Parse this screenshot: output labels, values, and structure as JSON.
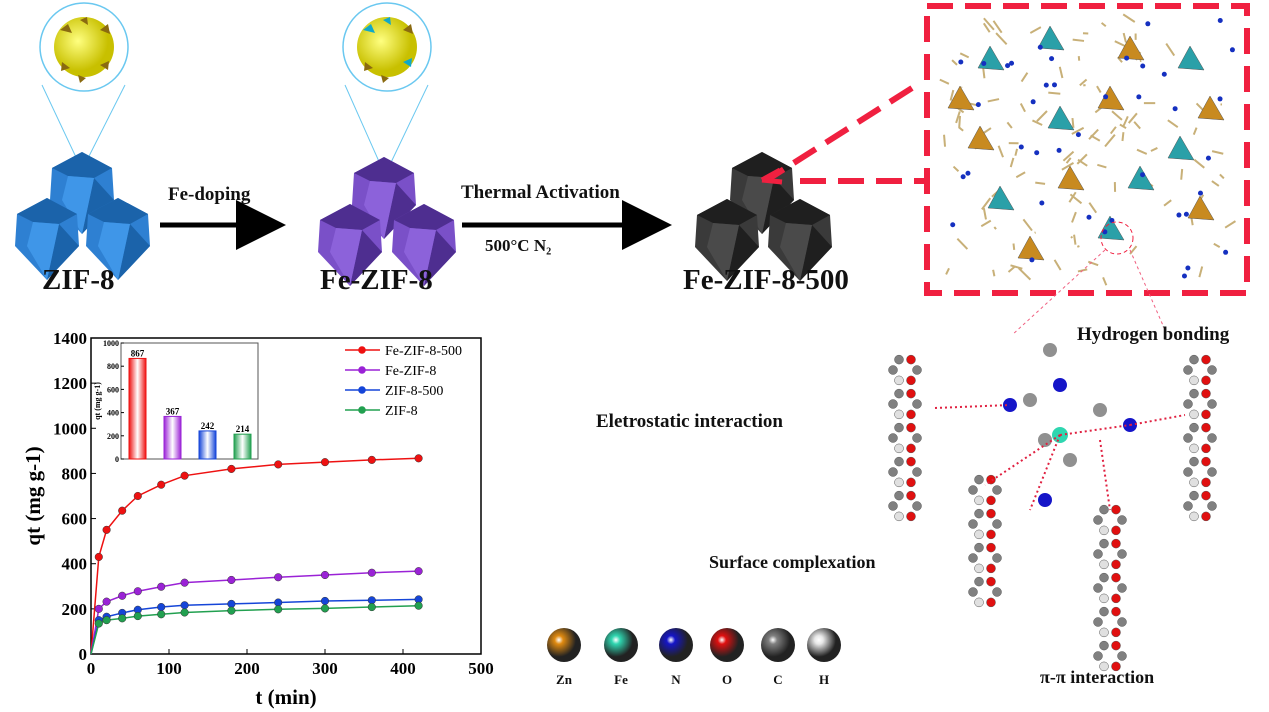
{
  "process": {
    "stage1": "ZIF-8",
    "stage2": "Fe-ZIF-8",
    "stage3": "Fe-ZIF-8-500",
    "step1": "Fe-doping",
    "step2": "Thermal Activation",
    "step2_condition": "500°C  N₂"
  },
  "interactions": {
    "hydrogen": "Hydrogen bonding",
    "electrostatic": "Eletrostatic interaction",
    "surface": "Surface complexation",
    "pi": "π-π interaction"
  },
  "atoms": [
    {
      "label": "Zn",
      "color": "#e08a10"
    },
    {
      "label": "Fe",
      "color": "#2fd6b0"
    },
    {
      "label": "N",
      "color": "#1515c8"
    },
    {
      "label": "O",
      "color": "#e01010"
    },
    {
      "label": "C",
      "color": "#808080"
    },
    {
      "label": "H",
      "color": "#e8e8e8"
    }
  ],
  "chart_data": [
    {
      "type": "line",
      "xlabel": "t (min)",
      "ylabel": "qt (mg g-1)",
      "xlim": [
        0,
        500
      ],
      "ylim": [
        0,
        1400
      ],
      "xticks": [
        "0",
        "100",
        "200",
        "300",
        "400",
        "500"
      ],
      "yticks": [
        "0",
        "200",
        "400",
        "600",
        "800",
        "1000",
        "1200",
        "1400"
      ],
      "legend": "top-right",
      "x": [
        0,
        10,
        20,
        40,
        60,
        90,
        120,
        180,
        240,
        300,
        360,
        420
      ],
      "series": [
        {
          "name": "Fe-ZIF-8-500",
          "color": "#ee1111",
          "values": [
            0,
            430,
            550,
            635,
            700,
            750,
            790,
            820,
            840,
            850,
            860,
            867
          ]
        },
        {
          "name": "Fe-ZIF-8",
          "color": "#9a22d6",
          "values": [
            0,
            200,
            232,
            258,
            278,
            298,
            316,
            328,
            340,
            350,
            360,
            367
          ]
        },
        {
          "name": "ZIF-8-500",
          "color": "#1545d8",
          "values": [
            0,
            150,
            165,
            182,
            196,
            208,
            216,
            222,
            228,
            235,
            238,
            242
          ]
        },
        {
          "name": "ZIF-8",
          "color": "#22a050",
          "values": [
            0,
            135,
            150,
            158,
            168,
            176,
            184,
            192,
            198,
            202,
            208,
            214
          ]
        }
      ]
    },
    {
      "type": "bar",
      "ylabel": "qt (mg g-1)",
      "ylim": [
        0,
        1000
      ],
      "yticks": [
        "0",
        "200",
        "400",
        "600",
        "800",
        "1000"
      ],
      "categories": [
        "Fe-ZIF-8-500",
        "Fe-ZIF-8",
        "ZIF-8-500",
        "ZIF-8"
      ],
      "values": [
        867,
        367,
        242,
        214
      ],
      "labels": [
        "867",
        "367",
        "242",
        "214"
      ],
      "colors": [
        "#ee1111",
        "#9a22d6",
        "#1545d8",
        "#22a050"
      ]
    }
  ]
}
